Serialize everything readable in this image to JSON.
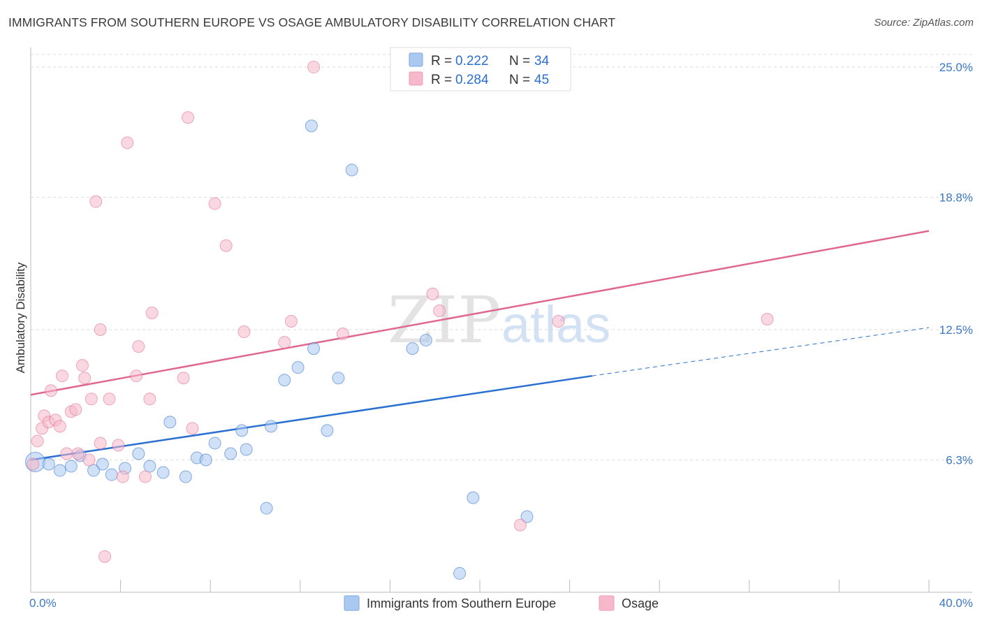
{
  "header": {
    "title": "IMMIGRANTS FROM SOUTHERN EUROPE VS OSAGE AMBULATORY DISABILITY CORRELATION CHART",
    "source": "Source: ZipAtlas.com"
  },
  "watermark": {
    "part1": "ZIP",
    "part2": "atlas"
  },
  "legend": {
    "rows": [
      {
        "r_label": "R = ",
        "r_value": "0.222",
        "n_label": "N = ",
        "n_value": "34",
        "color": "#a9c9f0"
      },
      {
        "r_label": "R = ",
        "r_value": "0.284",
        "n_label": "N = ",
        "n_value": "45",
        "color": "#f6b8cb"
      }
    ]
  },
  "bottom_legend": [
    {
      "label": "Immigrants from Southern Europe",
      "color": "#a9c9f0"
    },
    {
      "label": "Osage",
      "color": "#f6b8cb"
    }
  ],
  "chart_data": {
    "type": "scatter",
    "title": "IMMIGRANTS FROM SOUTHERN EUROPE VS OSAGE AMBULATORY DISABILITY CORRELATION CHART",
    "xlabel": "",
    "ylabel": "Ambulatory Disability",
    "xlim": [
      0,
      40
    ],
    "ylim": [
      0,
      25.6
    ],
    "x_tick_labels": [
      "0.0%",
      "40.0%"
    ],
    "y_ticks": [
      6.3,
      12.5,
      18.8,
      25.0
    ],
    "y_tick_labels": [
      "6.3%",
      "12.5%",
      "18.8%",
      "25.0%"
    ],
    "grid": "horizontal dashed",
    "legend_position": "top-center",
    "colors": {
      "blue_fill": "#a9c9f0",
      "blue_line": "#2a70d0",
      "pink_fill": "#f6b8cb",
      "pink_line": "#e0688f"
    },
    "series": [
      {
        "name": "Immigrants from Southern Europe",
        "color": "#a9c9f0",
        "points": [
          [
            0.2,
            6.2
          ],
          [
            0.8,
            6.1
          ],
          [
            1.3,
            5.8
          ],
          [
            1.8,
            6.0
          ],
          [
            2.2,
            6.5
          ],
          [
            2.8,
            5.8
          ],
          [
            3.2,
            6.1
          ],
          [
            3.6,
            5.6
          ],
          [
            4.2,
            5.9
          ],
          [
            4.8,
            6.6
          ],
          [
            5.3,
            6.0
          ],
          [
            5.9,
            5.7
          ],
          [
            6.2,
            8.1
          ],
          [
            6.9,
            5.5
          ],
          [
            7.4,
            6.4
          ],
          [
            7.8,
            6.3
          ],
          [
            8.2,
            7.1
          ],
          [
            8.9,
            6.6
          ],
          [
            9.4,
            7.7
          ],
          [
            9.6,
            6.8
          ],
          [
            10.5,
            4.0
          ],
          [
            10.7,
            7.9
          ],
          [
            11.3,
            10.1
          ],
          [
            11.9,
            10.7
          ],
          [
            12.5,
            22.2
          ],
          [
            12.6,
            11.6
          ],
          [
            13.2,
            7.7
          ],
          [
            13.7,
            10.2
          ],
          [
            14.3,
            20.1
          ],
          [
            17.0,
            11.6
          ],
          [
            17.6,
            12.0
          ],
          [
            19.1,
            0.9
          ],
          [
            19.7,
            4.5
          ],
          [
            22.1,
            3.6
          ]
        ]
      },
      {
        "name": "Osage",
        "color": "#f6b8cb",
        "points": [
          [
            0.1,
            6.1
          ],
          [
            0.3,
            7.2
          ],
          [
            0.5,
            7.8
          ],
          [
            0.6,
            8.4
          ],
          [
            0.8,
            8.1
          ],
          [
            0.9,
            9.6
          ],
          [
            1.1,
            8.2
          ],
          [
            1.3,
            7.9
          ],
          [
            1.4,
            10.3
          ],
          [
            1.6,
            6.6
          ],
          [
            1.8,
            8.6
          ],
          [
            2.0,
            8.7
          ],
          [
            2.1,
            6.6
          ],
          [
            2.3,
            10.8
          ],
          [
            2.4,
            10.2
          ],
          [
            2.6,
            6.3
          ],
          [
            2.7,
            9.2
          ],
          [
            2.9,
            18.6
          ],
          [
            3.1,
            7.1
          ],
          [
            3.1,
            12.5
          ],
          [
            3.3,
            1.7
          ],
          [
            3.5,
            9.2
          ],
          [
            3.9,
            7.0
          ],
          [
            4.1,
            5.5
          ],
          [
            4.3,
            21.4
          ],
          [
            4.7,
            10.3
          ],
          [
            4.8,
            11.7
          ],
          [
            5.1,
            5.5
          ],
          [
            5.3,
            9.2
          ],
          [
            5.4,
            13.3
          ],
          [
            6.8,
            10.2
          ],
          [
            7.0,
            22.6
          ],
          [
            7.2,
            7.8
          ],
          [
            8.2,
            18.5
          ],
          [
            8.7,
            16.5
          ],
          [
            9.5,
            12.4
          ],
          [
            11.3,
            11.9
          ],
          [
            11.6,
            12.9
          ],
          [
            12.6,
            25.0
          ],
          [
            13.9,
            12.3
          ],
          [
            17.9,
            14.2
          ],
          [
            18.2,
            13.4
          ],
          [
            21.8,
            3.2
          ],
          [
            23.5,
            12.9
          ],
          [
            32.8,
            13.0
          ]
        ]
      }
    ],
    "trend_lines": [
      {
        "series": "Immigrants from Southern Europe",
        "solid": [
          [
            0,
            6.3
          ],
          [
            25,
            10.3
          ]
        ],
        "dashed": [
          [
            25,
            10.3
          ],
          [
            40,
            12.6
          ]
        ]
      },
      {
        "series": "Osage",
        "solid": [
          [
            0,
            9.4
          ],
          [
            40,
            17.2
          ]
        ]
      }
    ]
  }
}
